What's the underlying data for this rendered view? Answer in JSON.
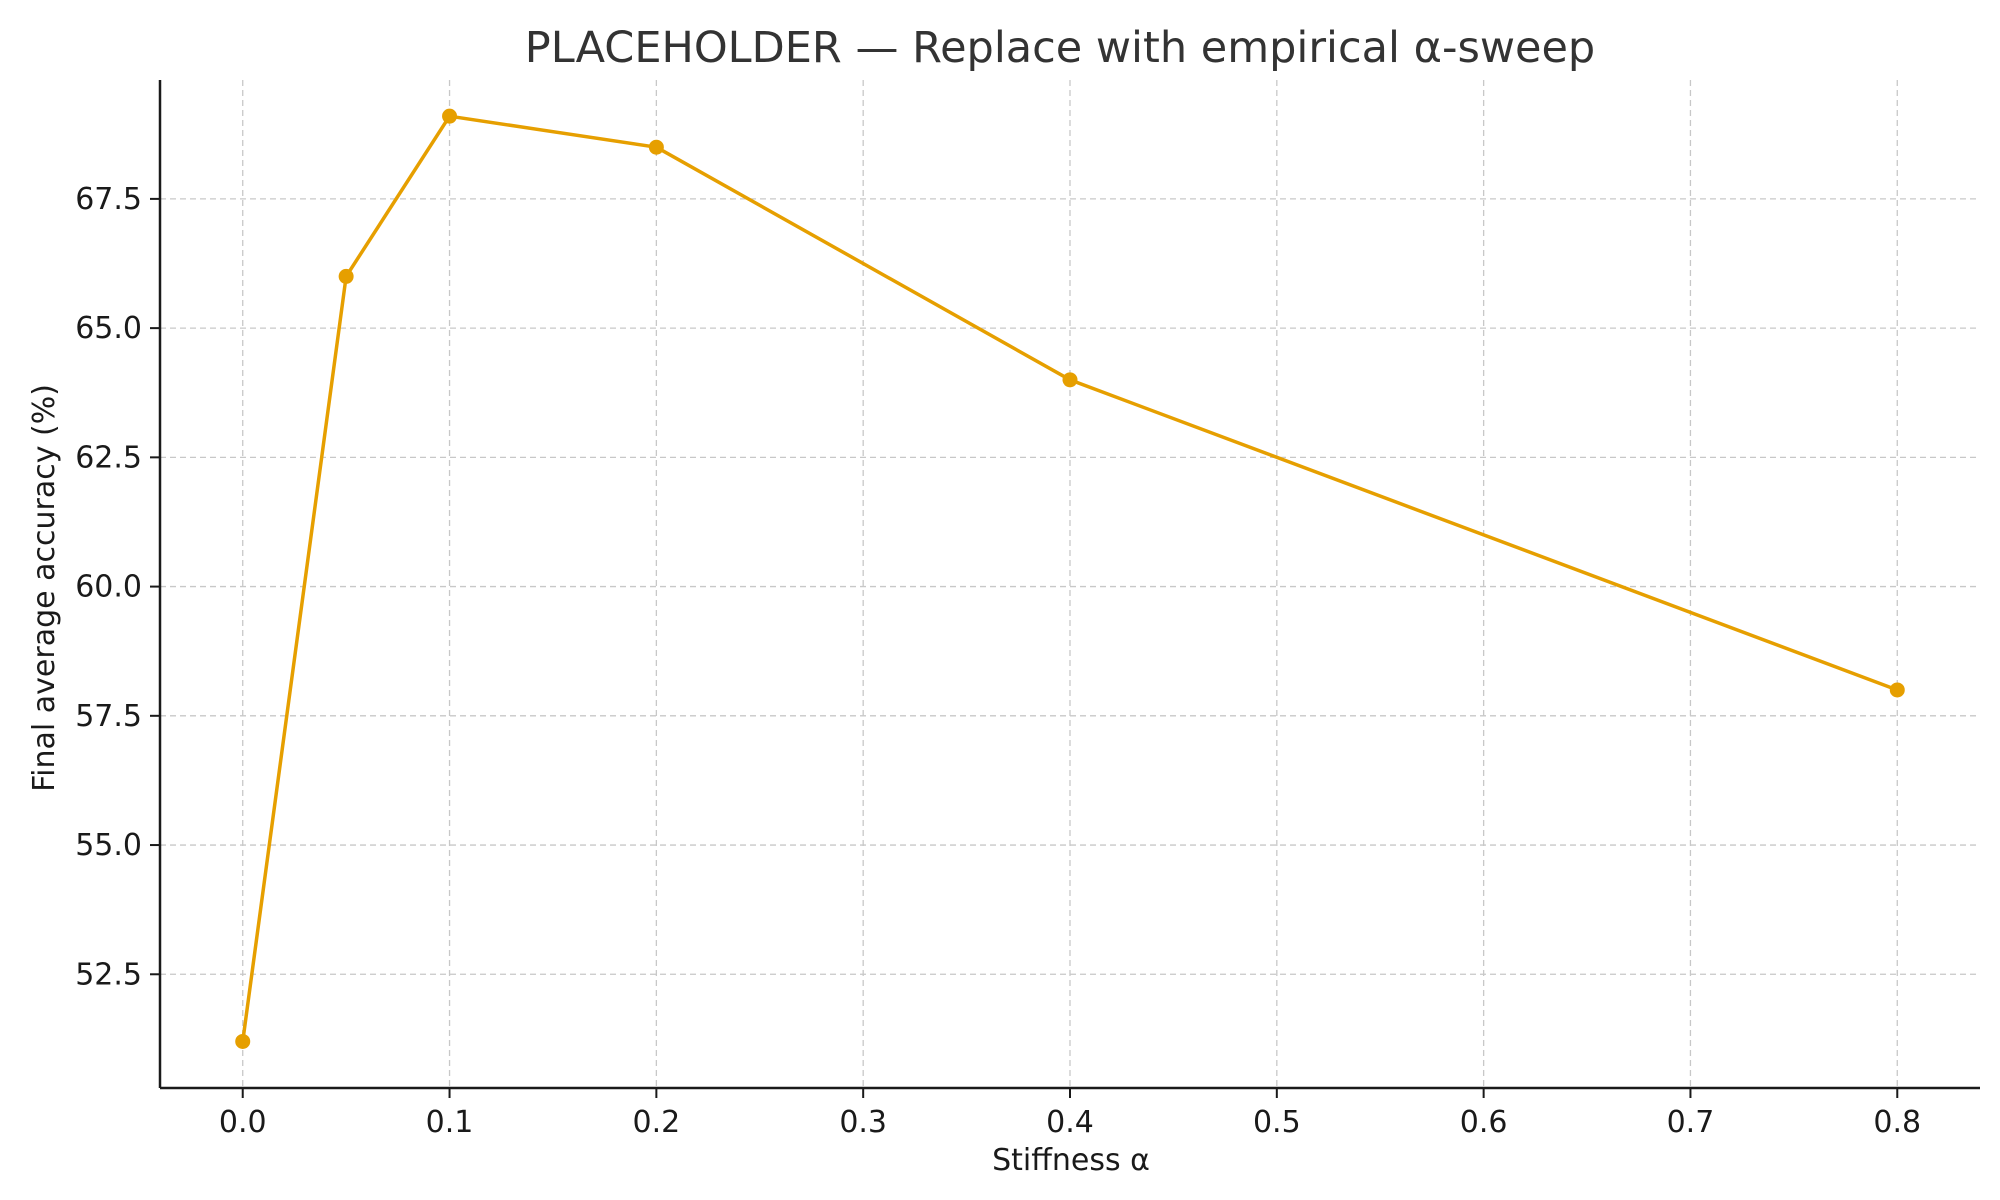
{
  "chart_data": {
    "type": "line",
    "title": "PLACEHOLDER — Replace with empirical α-sweep",
    "xlabel": "Stiffness α",
    "ylabel": "Final average accuracy (%)",
    "xlim": [
      -0.04,
      0.84
    ],
    "ylim": [
      50.3,
      69.8
    ],
    "xticks": [
      0.0,
      0.1,
      0.2,
      0.3,
      0.4,
      0.5,
      0.6,
      0.7,
      0.8
    ],
    "xtick_labels": [
      "0.0",
      "0.1",
      "0.2",
      "0.3",
      "0.4",
      "0.5",
      "0.6",
      "0.7",
      "0.8"
    ],
    "yticks": [
      52.5,
      55.0,
      57.5,
      60.0,
      62.5,
      65.0,
      67.5
    ],
    "ytick_labels": [
      "52.5",
      "55.0",
      "57.5",
      "60.0",
      "62.5",
      "65.0",
      "67.5"
    ],
    "grid": true,
    "color": "#e69f00",
    "series": [
      {
        "x": [
          0.0,
          0.05,
          0.1,
          0.2,
          0.4,
          0.8
        ],
        "y": [
          51.2,
          66.0,
          69.1,
          68.5,
          64.0,
          58.0
        ]
      }
    ]
  }
}
